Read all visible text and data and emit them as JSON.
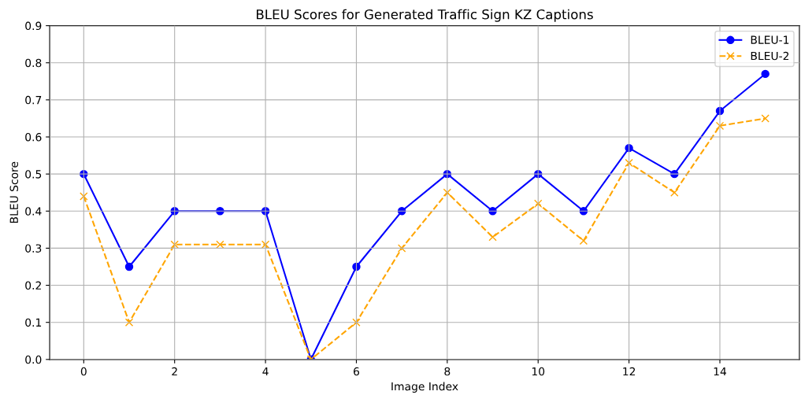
{
  "chart_data": {
    "type": "line",
    "title": "BLEU Scores for Generated Traffic Sign KZ Captions",
    "xlabel": "Image Index",
    "ylabel": "BLEU Score",
    "x": [
      0,
      1,
      2,
      3,
      4,
      5,
      6,
      7,
      8,
      9,
      10,
      11,
      12,
      13,
      14,
      15
    ],
    "series": [
      {
        "name": "BLEU-1",
        "color": "#0000ff",
        "marker": "circle",
        "line_style": "solid",
        "values": [
          0.5,
          0.25,
          0.4,
          0.4,
          0.4,
          0.0,
          0.25,
          0.4,
          0.5,
          0.4,
          0.5,
          0.4,
          0.57,
          0.5,
          0.67,
          0.77
        ]
      },
      {
        "name": "BLEU-2",
        "color": "#ffa500",
        "marker": "cross",
        "line_style": "dashed",
        "values": [
          0.44,
          0.1,
          0.31,
          0.31,
          0.31,
          0.0,
          0.1,
          0.3,
          0.45,
          0.33,
          0.42,
          0.32,
          0.53,
          0.45,
          0.63,
          0.65
        ]
      }
    ],
    "xlim": [
      -0.75,
      15.75
    ],
    "xticks": [
      0,
      2,
      4,
      6,
      8,
      10,
      12,
      14
    ],
    "ylim": [
      0,
      0.9
    ],
    "yticks": [
      {
        "value": 0,
        "label": "0.0"
      },
      {
        "value": 0.1,
        "label": "0.1"
      },
      {
        "value": 0.2,
        "label": "0.2"
      },
      {
        "value": 0.3,
        "label": "0.3"
      },
      {
        "value": 0.4,
        "label": "0.4"
      },
      {
        "value": 0.5,
        "label": "0.5"
      },
      {
        "value": 0.6,
        "label": "0.6"
      },
      {
        "value": 0.7,
        "label": "0.7"
      },
      {
        "value": 0.8,
        "label": "0.8"
      },
      {
        "value": 0.9,
        "label": "0.9"
      }
    ],
    "grid": true,
    "legend": "top right"
  }
}
